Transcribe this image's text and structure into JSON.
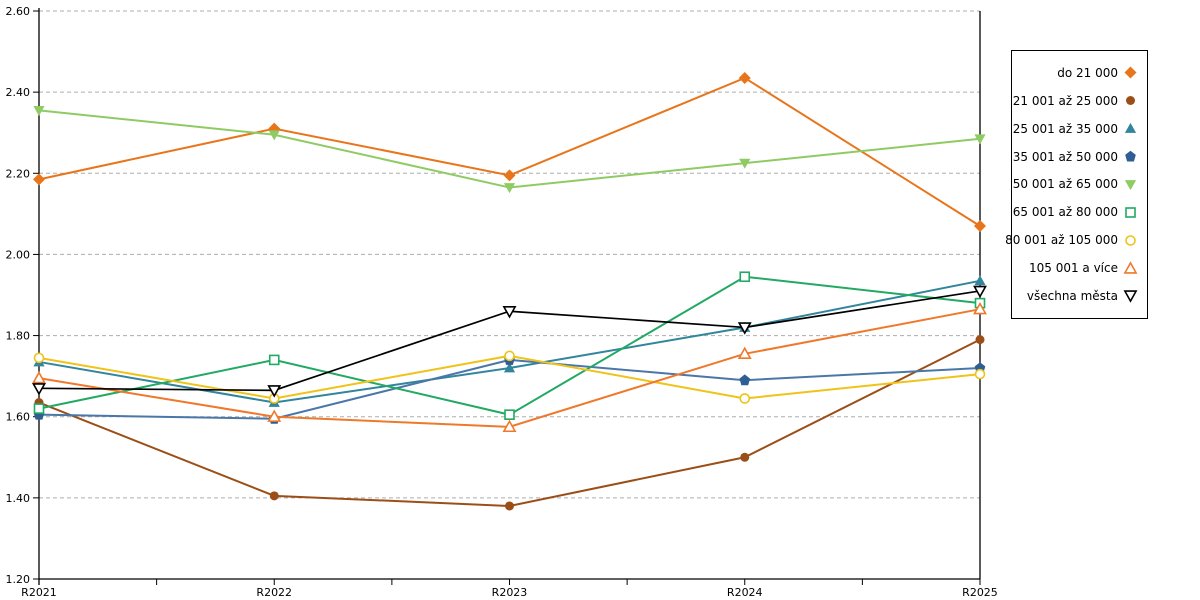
{
  "chart_data": {
    "type": "line",
    "title": "",
    "categories": [
      "R2021",
      "R2022",
      "R2023",
      "R2024",
      "R2025"
    ],
    "series": [
      {
        "name": "do 21 000",
        "values": [
          2.185,
          2.31,
          2.195,
          2.435,
          2.07
        ],
        "color": "#E8751A",
        "marker": "diamond",
        "fill": "solid"
      },
      {
        "name": "21 001 až 25 000",
        "values": [
          1.635,
          1.405,
          1.38,
          1.5,
          1.79
        ],
        "color": "#9B4F17",
        "marker": "circle",
        "fill": "solid"
      },
      {
        "name": "25 001 až 35 000",
        "values": [
          1.735,
          1.635,
          1.72,
          1.82,
          1.935
        ],
        "color": "#31859C",
        "marker": "triangle-up",
        "fill": "solid"
      },
      {
        "name": "35 001 až 50 000",
        "values": [
          1.605,
          1.595,
          1.74,
          1.69,
          1.72
        ],
        "color": "#2E5E92",
        "line_color": "#4A77A8",
        "marker": "pentagon",
        "fill": "solid"
      },
      {
        "name": "50 001 až 65 000",
        "values": [
          2.355,
          2.295,
          2.165,
          2.225,
          2.285
        ],
        "color": "#8FCB63",
        "marker": "triangle-down",
        "fill": "solid"
      },
      {
        "name": "65 001 až 80 000",
        "values": [
          1.62,
          1.74,
          1.605,
          1.945,
          1.88
        ],
        "color": "#22A963",
        "marker": "square",
        "fill": "hollow"
      },
      {
        "name": "80 001 až 105 000",
        "values": [
          1.745,
          1.645,
          1.75,
          1.645,
          1.705
        ],
        "color": "#EFC319",
        "marker": "circle",
        "fill": "hollow"
      },
      {
        "name": "105 001 a více",
        "values": [
          1.695,
          1.6,
          1.575,
          1.755,
          1.865
        ],
        "color": "#F0782A",
        "marker": "triangle-up",
        "fill": "hollow"
      },
      {
        "name": "všechna města",
        "values": [
          1.67,
          1.665,
          1.86,
          1.82,
          1.91
        ],
        "color": "#000000",
        "line_width": 1.7,
        "marker": "triangle-down",
        "fill": "hollow"
      }
    ],
    "y_axis": {
      "min": 1.2,
      "max": 2.6,
      "step": 0.2,
      "tick_labels": [
        "1.20",
        "1.40",
        "1.60",
        "1.80",
        "2.00",
        "2.20",
        "2.40",
        "2.60"
      ]
    },
    "x_axis": {
      "tick_labels": [
        "R2021",
        "R2022",
        "R2023",
        "R2024",
        "R2025"
      ],
      "minor_ticks_between": true
    },
    "grid": "horizontal-dashed",
    "legend_position": "right-outside",
    "xlabel": "",
    "ylabel": ""
  },
  "colors": {
    "grid": "#ADADAD",
    "axis": "#000000",
    "background": "#FFFFFF"
  }
}
